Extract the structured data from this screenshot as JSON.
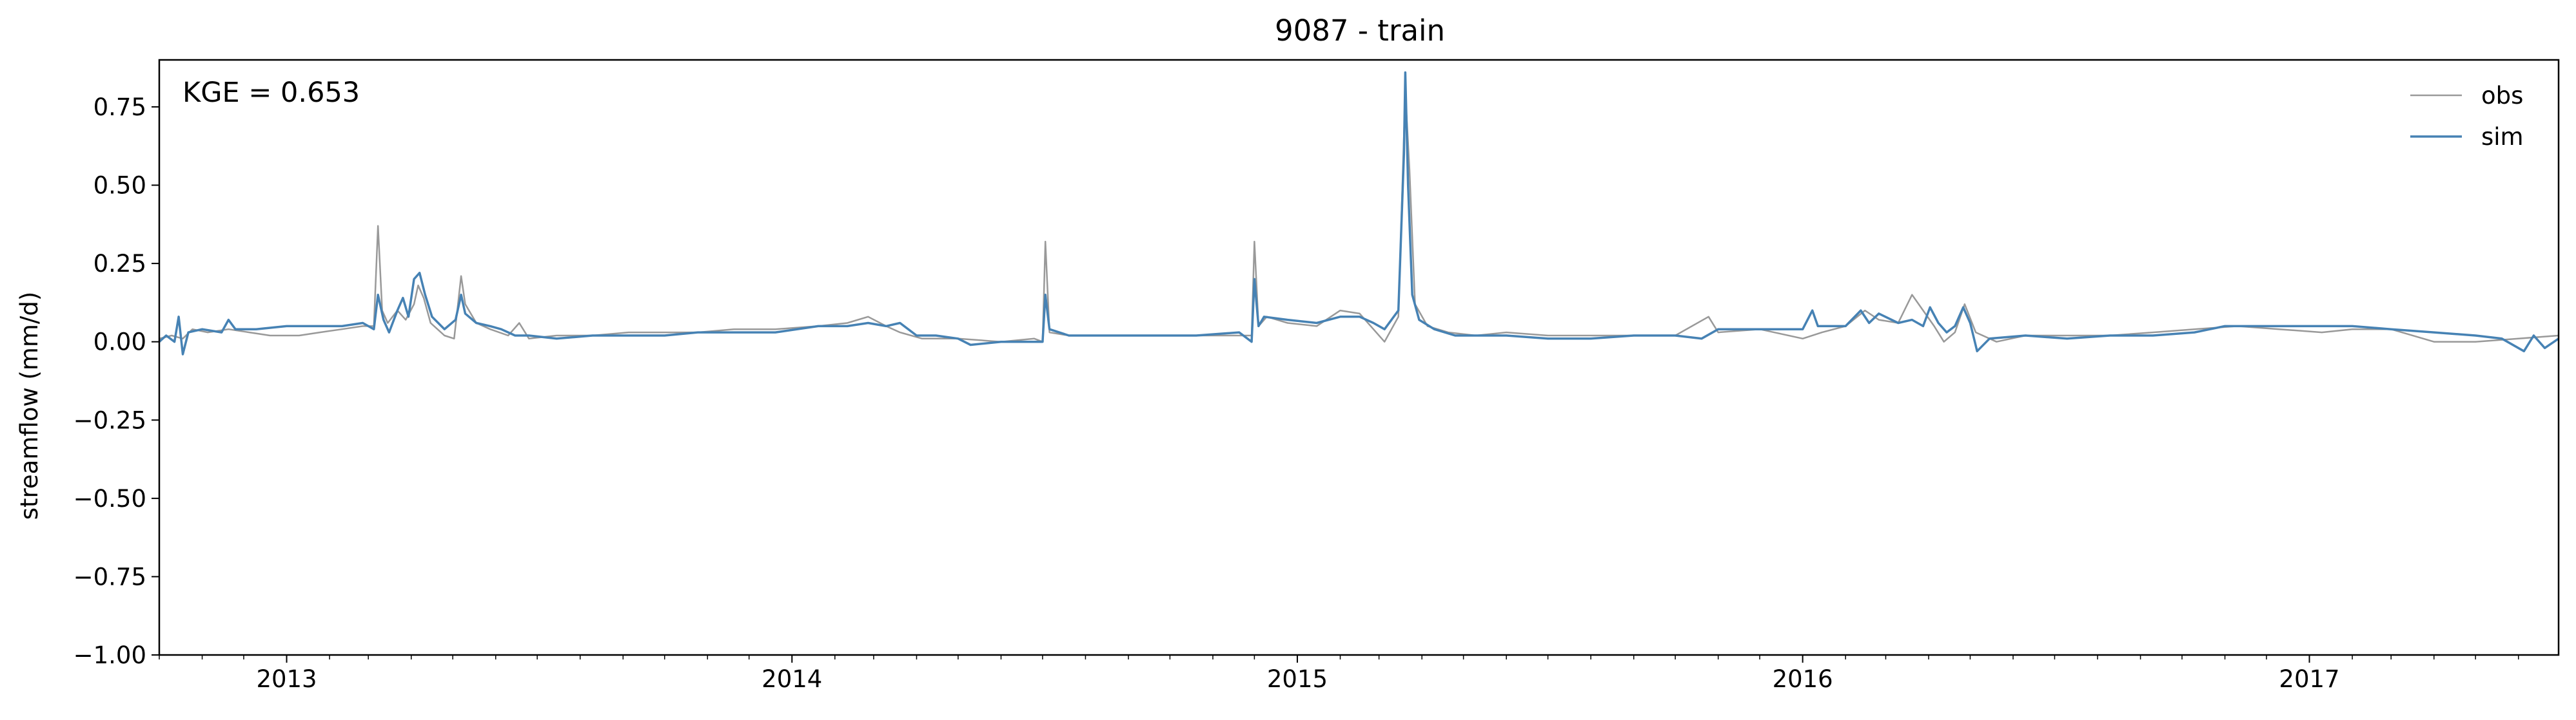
{
  "chart_data": {
    "type": "line",
    "title": "9087 - train",
    "xlabel": "",
    "ylabel": "streamflow (mm/d)",
    "annotation": "KGE = 0.653",
    "xlim": [
      "2012-10-01",
      "2017-06-30"
    ],
    "ylim": [
      -1.0,
      0.9
    ],
    "x_ticks": [
      "2013",
      "2014",
      "2015",
      "2016",
      "2017"
    ],
    "y_ticks": [
      "−1.00",
      "−0.75",
      "−0.50",
      "−0.25",
      "0.00",
      "0.25",
      "0.50",
      "0.75"
    ],
    "grid": false,
    "legend_position": "top-right",
    "series": [
      {
        "name": "obs",
        "color": "#999999",
        "points": [
          [
            "2012-10-01",
            0.01
          ],
          [
            "2012-10-10",
            0.02
          ],
          [
            "2012-10-18",
            0.01
          ],
          [
            "2012-10-25",
            0.04
          ],
          [
            "2012-11-05",
            0.03
          ],
          [
            "2012-11-20",
            0.04
          ],
          [
            "2012-12-05",
            0.03
          ],
          [
            "2012-12-20",
            0.02
          ],
          [
            "2013-01-10",
            0.02
          ],
          [
            "2013-01-25",
            0.03
          ],
          [
            "2013-02-10",
            0.04
          ],
          [
            "2013-02-25",
            0.05
          ],
          [
            "2013-03-05",
            0.05
          ],
          [
            "2013-03-08",
            0.37
          ],
          [
            "2013-03-11",
            0.1
          ],
          [
            "2013-03-15",
            0.06
          ],
          [
            "2013-03-22",
            0.1
          ],
          [
            "2013-03-28",
            0.07
          ],
          [
            "2013-04-03",
            0.12
          ],
          [
            "2013-04-06",
            0.18
          ],
          [
            "2013-04-10",
            0.14
          ],
          [
            "2013-04-15",
            0.06
          ],
          [
            "2013-04-25",
            0.02
          ],
          [
            "2013-05-02",
            0.01
          ],
          [
            "2013-05-07",
            0.21
          ],
          [
            "2013-05-10",
            0.12
          ],
          [
            "2013-05-18",
            0.06
          ],
          [
            "2013-05-28",
            0.04
          ],
          [
            "2013-06-10",
            0.02
          ],
          [
            "2013-06-18",
            0.06
          ],
          [
            "2013-06-25",
            0.01
          ],
          [
            "2013-07-15",
            0.02
          ],
          [
            "2013-08-10",
            0.02
          ],
          [
            "2013-09-05",
            0.03
          ],
          [
            "2013-10-01",
            0.03
          ],
          [
            "2013-10-25",
            0.03
          ],
          [
            "2013-11-20",
            0.04
          ],
          [
            "2013-12-20",
            0.04
          ],
          [
            "2014-01-20",
            0.05
          ],
          [
            "2014-02-10",
            0.06
          ],
          [
            "2014-02-25",
            0.08
          ],
          [
            "2014-03-10",
            0.05
          ],
          [
            "2014-03-20",
            0.03
          ],
          [
            "2014-04-05",
            0.01
          ],
          [
            "2014-05-01",
            0.01
          ],
          [
            "2014-06-01",
            0.0
          ],
          [
            "2014-06-25",
            0.01
          ],
          [
            "2014-07-01",
            0.0
          ],
          [
            "2014-07-03",
            0.32
          ],
          [
            "2014-07-06",
            0.03
          ],
          [
            "2014-07-20",
            0.02
          ],
          [
            "2014-08-20",
            0.02
          ],
          [
            "2014-09-20",
            0.02
          ],
          [
            "2014-10-20",
            0.02
          ],
          [
            "2014-11-20",
            0.02
          ],
          [
            "2014-11-29",
            0.02
          ],
          [
            "2014-12-01",
            0.32
          ],
          [
            "2014-12-04",
            0.05
          ],
          [
            "2014-12-10",
            0.08
          ],
          [
            "2014-12-25",
            0.06
          ],
          [
            "2015-01-15",
            0.05
          ],
          [
            "2015-02-01",
            0.1
          ],
          [
            "2015-02-15",
            0.09
          ],
          [
            "2015-02-25",
            0.04
          ],
          [
            "2015-03-05",
            0.0
          ],
          [
            "2015-03-15",
            0.08
          ],
          [
            "2015-03-20",
            0.8
          ],
          [
            "2015-03-23",
            0.55
          ],
          [
            "2015-03-27",
            0.12
          ],
          [
            "2015-04-05",
            0.05
          ],
          [
            "2015-04-20",
            0.03
          ],
          [
            "2015-05-10",
            0.02
          ],
          [
            "2015-06-01",
            0.03
          ],
          [
            "2015-07-01",
            0.02
          ],
          [
            "2015-08-01",
            0.02
          ],
          [
            "2015-09-01",
            0.02
          ],
          [
            "2015-10-01",
            0.02
          ],
          [
            "2015-10-25",
            0.08
          ],
          [
            "2015-11-01",
            0.03
          ],
          [
            "2015-12-01",
            0.04
          ],
          [
            "2016-01-01",
            0.01
          ],
          [
            "2016-01-15",
            0.03
          ],
          [
            "2016-02-01",
            0.05
          ],
          [
            "2016-02-15",
            0.1
          ],
          [
            "2016-02-25",
            0.07
          ],
          [
            "2016-03-10",
            0.06
          ],
          [
            "2016-03-20",
            0.15
          ],
          [
            "2016-03-28",
            0.1
          ],
          [
            "2016-04-05",
            0.05
          ],
          [
            "2016-04-12",
            0.0
          ],
          [
            "2016-04-20",
            0.03
          ],
          [
            "2016-04-27",
            0.12
          ],
          [
            "2016-05-05",
            0.03
          ],
          [
            "2016-05-20",
            0.0
          ],
          [
            "2016-06-10",
            0.02
          ],
          [
            "2016-07-10",
            0.02
          ],
          [
            "2016-08-10",
            0.02
          ],
          [
            "2016-09-10",
            0.03
          ],
          [
            "2016-10-10",
            0.04
          ],
          [
            "2016-11-10",
            0.05
          ],
          [
            "2016-12-10",
            0.04
          ],
          [
            "2017-01-10",
            0.03
          ],
          [
            "2017-02-01",
            0.04
          ],
          [
            "2017-03-01",
            0.04
          ],
          [
            "2017-04-01",
            0.0
          ],
          [
            "2017-05-01",
            0.0
          ],
          [
            "2017-06-01",
            0.01
          ],
          [
            "2017-06-30",
            0.02
          ]
        ]
      },
      {
        "name": "sim",
        "color": "#4682b4",
        "points": [
          [
            "2012-10-01",
            0.0
          ],
          [
            "2012-10-06",
            0.02
          ],
          [
            "2012-10-12",
            0.0
          ],
          [
            "2012-10-15",
            0.08
          ],
          [
            "2012-10-18",
            -0.04
          ],
          [
            "2012-10-22",
            0.03
          ],
          [
            "2012-11-01",
            0.04
          ],
          [
            "2012-11-15",
            0.03
          ],
          [
            "2012-11-20",
            0.07
          ],
          [
            "2012-11-25",
            0.04
          ],
          [
            "2012-12-10",
            0.04
          ],
          [
            "2013-01-01",
            0.05
          ],
          [
            "2013-01-20",
            0.05
          ],
          [
            "2013-02-10",
            0.05
          ],
          [
            "2013-02-25",
            0.06
          ],
          [
            "2013-03-05",
            0.04
          ],
          [
            "2013-03-08",
            0.15
          ],
          [
            "2013-03-12",
            0.07
          ],
          [
            "2013-03-16",
            0.03
          ],
          [
            "2013-03-22",
            0.1
          ],
          [
            "2013-03-26",
            0.14
          ],
          [
            "2013-03-30",
            0.08
          ],
          [
            "2013-04-03",
            0.2
          ],
          [
            "2013-04-07",
            0.22
          ],
          [
            "2013-04-11",
            0.15
          ],
          [
            "2013-04-16",
            0.08
          ],
          [
            "2013-04-25",
            0.04
          ],
          [
            "2013-05-03",
            0.07
          ],
          [
            "2013-05-07",
            0.15
          ],
          [
            "2013-05-10",
            0.09
          ],
          [
            "2013-05-18",
            0.06
          ],
          [
            "2013-05-28",
            0.05
          ],
          [
            "2013-06-05",
            0.04
          ],
          [
            "2013-06-15",
            0.02
          ],
          [
            "2013-06-25",
            0.02
          ],
          [
            "2013-07-15",
            0.01
          ],
          [
            "2013-08-10",
            0.02
          ],
          [
            "2013-09-05",
            0.02
          ],
          [
            "2013-10-01",
            0.02
          ],
          [
            "2013-10-25",
            0.03
          ],
          [
            "2013-11-20",
            0.03
          ],
          [
            "2013-12-20",
            0.03
          ],
          [
            "2014-01-20",
            0.05
          ],
          [
            "2014-02-10",
            0.05
          ],
          [
            "2014-02-25",
            0.06
          ],
          [
            "2014-03-10",
            0.05
          ],
          [
            "2014-03-20",
            0.06
          ],
          [
            "2014-04-01",
            0.02
          ],
          [
            "2014-04-15",
            0.02
          ],
          [
            "2014-05-01",
            0.01
          ],
          [
            "2014-05-10",
            -0.01
          ],
          [
            "2014-06-01",
            0.0
          ],
          [
            "2014-06-25",
            0.0
          ],
          [
            "2014-07-01",
            0.0
          ],
          [
            "2014-07-03",
            0.15
          ],
          [
            "2014-07-06",
            0.04
          ],
          [
            "2014-07-20",
            0.02
          ],
          [
            "2014-08-20",
            0.02
          ],
          [
            "2014-09-20",
            0.02
          ],
          [
            "2014-10-20",
            0.02
          ],
          [
            "2014-11-20",
            0.03
          ],
          [
            "2014-11-29",
            0.0
          ],
          [
            "2014-12-01",
            0.2
          ],
          [
            "2014-12-04",
            0.05
          ],
          [
            "2014-12-08",
            0.08
          ],
          [
            "2014-12-25",
            0.07
          ],
          [
            "2015-01-15",
            0.06
          ],
          [
            "2015-02-01",
            0.08
          ],
          [
            "2015-02-15",
            0.08
          ],
          [
            "2015-02-25",
            0.06
          ],
          [
            "2015-03-05",
            0.04
          ],
          [
            "2015-03-15",
            0.1
          ],
          [
            "2015-03-19",
            0.6
          ],
          [
            "2015-03-20",
            0.86
          ],
          [
            "2015-03-22",
            0.5
          ],
          [
            "2015-03-25",
            0.15
          ],
          [
            "2015-03-30",
            0.07
          ],
          [
            "2015-04-10",
            0.04
          ],
          [
            "2015-04-25",
            0.02
          ],
          [
            "2015-05-10",
            0.02
          ],
          [
            "2015-06-01",
            0.02
          ],
          [
            "2015-07-01",
            0.01
          ],
          [
            "2015-08-01",
            0.01
          ],
          [
            "2015-09-01",
            0.02
          ],
          [
            "2015-10-01",
            0.02
          ],
          [
            "2015-10-20",
            0.01
          ],
          [
            "2015-11-01",
            0.04
          ],
          [
            "2015-12-01",
            0.04
          ],
          [
            "2016-01-01",
            0.04
          ],
          [
            "2016-01-08",
            0.1
          ],
          [
            "2016-01-12",
            0.05
          ],
          [
            "2016-02-01",
            0.05
          ],
          [
            "2016-02-12",
            0.1
          ],
          [
            "2016-02-18",
            0.06
          ],
          [
            "2016-02-25",
            0.09
          ],
          [
            "2016-03-10",
            0.06
          ],
          [
            "2016-03-20",
            0.07
          ],
          [
            "2016-03-28",
            0.05
          ],
          [
            "2016-04-02",
            0.11
          ],
          [
            "2016-04-08",
            0.06
          ],
          [
            "2016-04-14",
            0.03
          ],
          [
            "2016-04-20",
            0.05
          ],
          [
            "2016-04-26",
            0.11
          ],
          [
            "2016-05-01",
            0.06
          ],
          [
            "2016-05-06",
            -0.03
          ],
          [
            "2016-05-15",
            0.01
          ],
          [
            "2016-06-10",
            0.02
          ],
          [
            "2016-07-10",
            0.01
          ],
          [
            "2016-08-10",
            0.02
          ],
          [
            "2016-09-10",
            0.02
          ],
          [
            "2016-10-10",
            0.03
          ],
          [
            "2016-11-01",
            0.05
          ],
          [
            "2016-11-20",
            0.05
          ],
          [
            "2016-12-10",
            0.05
          ],
          [
            "2017-01-10",
            0.05
          ],
          [
            "2017-02-01",
            0.05
          ],
          [
            "2017-03-01",
            0.04
          ],
          [
            "2017-04-01",
            0.03
          ],
          [
            "2017-05-01",
            0.02
          ],
          [
            "2017-05-20",
            0.01
          ],
          [
            "2017-06-05",
            -0.03
          ],
          [
            "2017-06-12",
            0.02
          ],
          [
            "2017-06-20",
            -0.02
          ],
          [
            "2017-06-30",
            0.01
          ]
        ]
      }
    ]
  }
}
